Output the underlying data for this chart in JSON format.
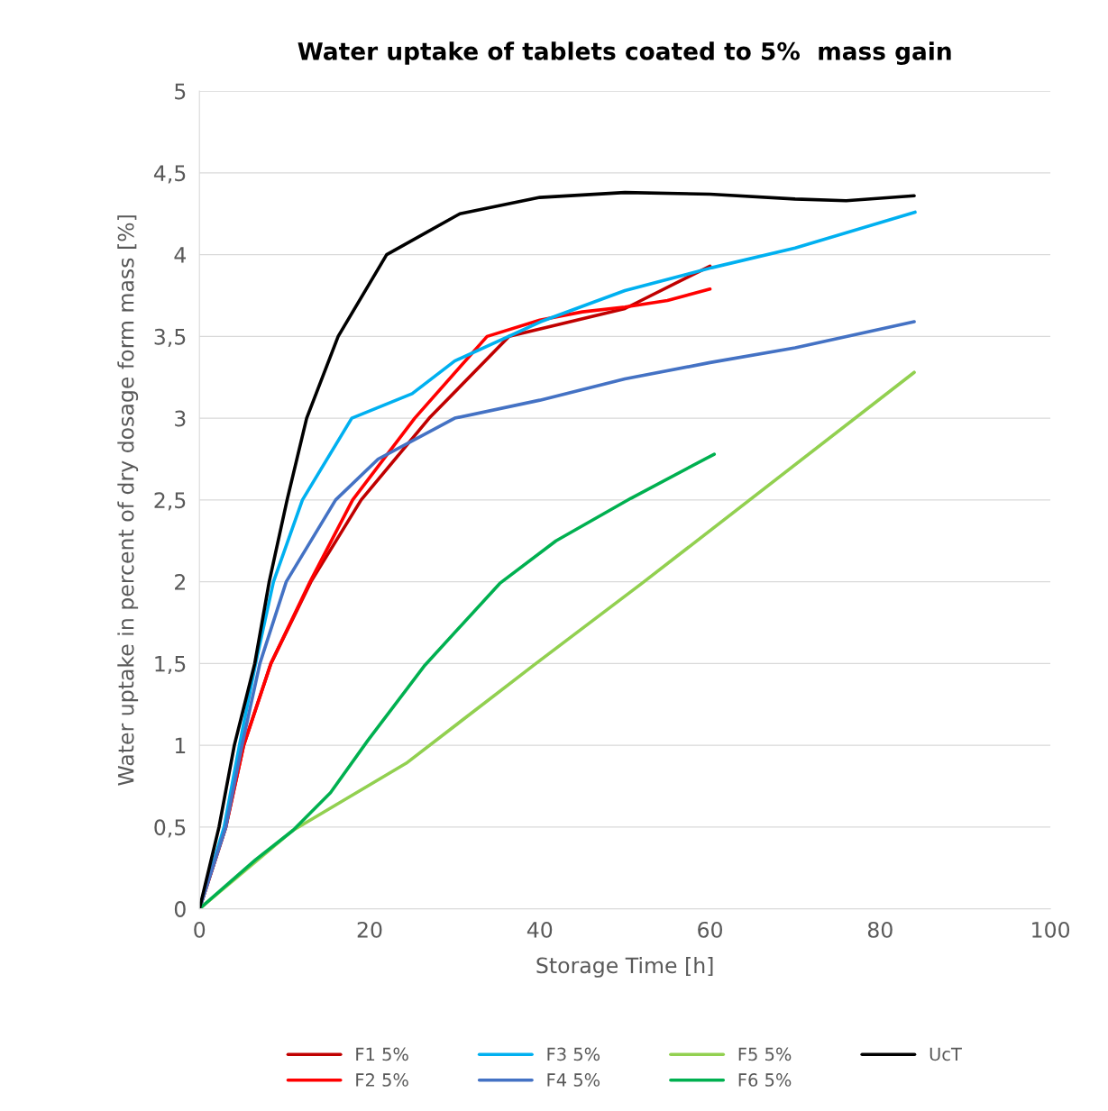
{
  "chart_data": {
    "type": "line",
    "title": "Water uptake of tablets coated to 5%  mass gain",
    "xlabel": "Storage Time [h]",
    "ylabel": "Water uptake in percent of dry dosage form mass [%]",
    "xlim": [
      0,
      100
    ],
    "xticks": [
      0,
      20,
      40,
      60,
      80,
      100
    ],
    "ylim": [
      0,
      5
    ],
    "yticks": [
      {
        "value": 0,
        "label": "0"
      },
      {
        "value": 0.5,
        "label": "0,5"
      },
      {
        "value": 1,
        "label": "1"
      },
      {
        "value": 1.5,
        "label": "1,5"
      },
      {
        "value": 2,
        "label": "2"
      },
      {
        "value": 2.5,
        "label": "2,5"
      },
      {
        "value": 3,
        "label": "3"
      },
      {
        "value": 3.5,
        "label": "3,5"
      },
      {
        "value": 4,
        "label": "4"
      },
      {
        "value": 4.5,
        "label": "4,5"
      },
      {
        "value": 5,
        "label": "5"
      }
    ],
    "grid": "y",
    "legend": "bottom",
    "marker": "none",
    "line_style": "solid",
    "series": [
      {
        "name": "F1 5%",
        "color": "#c00000",
        "x": [
          0,
          3.1,
          5.2,
          8.4,
          13.1,
          19,
          27,
          36.4,
          50,
          60
        ],
        "values": [
          0,
          0.5,
          1,
          1.5,
          2,
          2.5,
          3,
          3.5,
          3.67,
          3.93
        ]
      },
      {
        "name": "F2 5%",
        "color": "#ff0000",
        "x": [
          0,
          3.1,
          5.2,
          8.4,
          13,
          18,
          25.3,
          33.8,
          40,
          45,
          50,
          55,
          60
        ],
        "values": [
          0,
          0.5,
          1,
          1.5,
          2,
          2.5,
          3,
          3.5,
          3.6,
          3.65,
          3.68,
          3.72,
          3.79
        ]
      },
      {
        "name": "F3 5%",
        "color": "#00b0f0",
        "x": [
          0,
          2.9,
          4.7,
          6.6,
          8.7,
          12.1,
          17.9,
          25,
          30,
          40.1,
          50,
          60.2,
          70,
          84.1
        ],
        "values": [
          0,
          0.5,
          1,
          1.5,
          2,
          2.5,
          3,
          3.15,
          3.35,
          3.59,
          3.78,
          3.92,
          4.04,
          4.26
        ]
      },
      {
        "name": "F4 5%",
        "color": "#4472c4",
        "x": [
          0,
          3.1,
          5,
          7.1,
          10.2,
          16,
          21,
          30,
          40,
          50,
          60,
          70,
          84
        ],
        "values": [
          0,
          0.5,
          1,
          1.5,
          2,
          2.5,
          2.75,
          3,
          3.11,
          3.24,
          3.34,
          3.43,
          3.59
        ]
      },
      {
        "name": "F5 5%",
        "color": "#92d050",
        "x": [
          0,
          11,
          24.3,
          39.3,
          52,
          84
        ],
        "values": [
          0,
          0.48,
          0.89,
          1.49,
          1.99,
          3.28
        ]
      },
      {
        "name": "F6 5%",
        "color": "#00b050",
        "x": [
          0,
          6.6,
          11,
          15.4,
          19.8,
          26.5,
          35.3,
          41.9,
          50.7,
          60.5
        ],
        "values": [
          0,
          0.3,
          0.48,
          0.71,
          1.03,
          1.49,
          1.99,
          2.25,
          2.51,
          2.78
        ]
      },
      {
        "name": "UcT",
        "color": "#000000",
        "x": [
          0,
          2.3,
          4.1,
          6.5,
          8.2,
          10.3,
          12.6,
          16.3,
          22,
          30.6,
          40,
          50,
          60,
          70,
          76,
          84
        ],
        "values": [
          0,
          0.5,
          1,
          1.5,
          2,
          2.5,
          3,
          3.5,
          4,
          4.25,
          4.35,
          4.38,
          4.37,
          4.34,
          4.33,
          4.36
        ]
      }
    ]
  }
}
